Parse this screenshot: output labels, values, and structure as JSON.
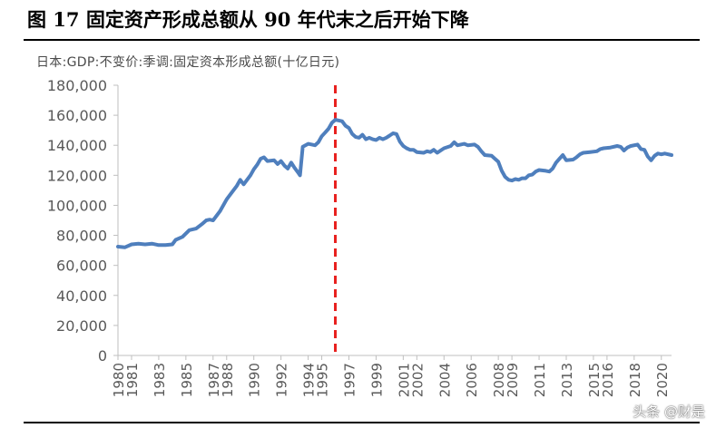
{
  "figure": {
    "title": "图 17 固定资产形成总额从 90 年代末之后开始下降",
    "subtitle": "日本:GDP:不变价:季调:固定资本形成总额(十亿日元)"
  },
  "watermark": "头条 @财是",
  "colors": {
    "series": "#4f7fbd",
    "marker": "#e8211f",
    "axis": "#bfbfbf",
    "text": "#595959"
  },
  "chart_data": {
    "type": "line",
    "title": "",
    "xlabel": "",
    "ylabel": "",
    "ylim": [
      0,
      180000
    ],
    "xlim": [
      1980.0,
      2020.75
    ],
    "grid": false,
    "legend": "none",
    "y_ticks": [
      0,
      20000,
      40000,
      60000,
      80000,
      100000,
      120000,
      140000,
      160000,
      180000
    ],
    "y_tick_labels": [
      "0",
      "20,000",
      "40,000",
      "60,000",
      "80,000",
      "100,000",
      "120,000",
      "140,000",
      "160,000",
      "180,000"
    ],
    "x_ticks": [
      1980,
      1981,
      1983,
      1985,
      1987,
      1988,
      1990,
      1992,
      1994,
      1995,
      1997,
      1999,
      2001,
      2002,
      2004,
      2006,
      2008,
      2009,
      2011,
      2013,
      2015,
      2016,
      2018,
      2020
    ],
    "x_tick_labels": [
      "1980",
      "1981",
      "1983",
      "1985",
      "1987",
      "1988",
      "1990",
      "1992",
      "1994",
      "1995",
      "1997",
      "1999",
      "2001",
      "2002",
      "2004",
      "2006",
      "2008",
      "2009",
      "2011",
      "2013",
      "2015",
      "2016",
      "2018",
      "2020"
    ],
    "reference_line": {
      "x": 1996.0,
      "style": "dashed",
      "color": "#e8211f"
    },
    "series": [
      {
        "color": "#4f7fbd",
        "points": [
          [
            1980.0,
            72500
          ],
          [
            1980.5,
            72000
          ],
          [
            1981.0,
            74000
          ],
          [
            1981.5,
            74500
          ],
          [
            1982.0,
            74000
          ],
          [
            1982.5,
            74500
          ],
          [
            1983.0,
            73500
          ],
          [
            1983.5,
            73500
          ],
          [
            1984.0,
            74000
          ],
          [
            1984.25,
            77000
          ],
          [
            1984.75,
            79000
          ],
          [
            1985.25,
            83500
          ],
          [
            1985.75,
            84500
          ],
          [
            1986.25,
            88000
          ],
          [
            1986.5,
            90000
          ],
          [
            1986.75,
            90500
          ],
          [
            1987.0,
            90000
          ],
          [
            1987.5,
            96000
          ],
          [
            1988.0,
            104000
          ],
          [
            1988.5,
            110000
          ],
          [
            1988.75,
            113000
          ],
          [
            1989.0,
            117000
          ],
          [
            1989.25,
            114000
          ],
          [
            1989.75,
            120000
          ],
          [
            1990.0,
            124000
          ],
          [
            1990.25,
            127000
          ],
          [
            1990.5,
            131000
          ],
          [
            1990.75,
            132000
          ],
          [
            1991.0,
            129500
          ],
          [
            1991.5,
            130000
          ],
          [
            1991.75,
            127500
          ],
          [
            1992.0,
            129500
          ],
          [
            1992.25,
            126500
          ],
          [
            1992.5,
            124500
          ],
          [
            1992.75,
            128500
          ],
          [
            1993.0,
            125000
          ],
          [
            1993.25,
            122000
          ],
          [
            1993.4,
            120000
          ],
          [
            1993.6,
            139000
          ],
          [
            1994.0,
            141000
          ],
          [
            1994.5,
            140000
          ],
          [
            1994.75,
            142000
          ],
          [
            1995.0,
            146000
          ],
          [
            1995.25,
            148500
          ],
          [
            1995.5,
            151000
          ],
          [
            1995.75,
            155000
          ],
          [
            1996.0,
            157000
          ],
          [
            1996.5,
            156000
          ],
          [
            1996.75,
            153000
          ],
          [
            1997.0,
            151500
          ],
          [
            1997.25,
            147500
          ],
          [
            1997.5,
            145500
          ],
          [
            1997.75,
            145000
          ],
          [
            1998.0,
            147000
          ],
          [
            1998.25,
            144000
          ],
          [
            1998.5,
            145000
          ],
          [
            1998.75,
            144000
          ],
          [
            1999.0,
            143500
          ],
          [
            1999.25,
            145000
          ],
          [
            1999.5,
            144000
          ],
          [
            1999.75,
            145000
          ],
          [
            2000.0,
            146500
          ],
          [
            2000.25,
            148000
          ],
          [
            2000.5,
            147500
          ],
          [
            2000.75,
            142500
          ],
          [
            2001.0,
            139500
          ],
          [
            2001.25,
            138000
          ],
          [
            2001.5,
            137000
          ],
          [
            2001.75,
            137000
          ],
          [
            2002.0,
            135500
          ],
          [
            2002.5,
            135000
          ],
          [
            2002.75,
            136000
          ],
          [
            2003.0,
            135500
          ],
          [
            2003.25,
            137000
          ],
          [
            2003.5,
            135000
          ],
          [
            2003.75,
            136500
          ],
          [
            2004.0,
            138000
          ],
          [
            2004.5,
            139500
          ],
          [
            2004.75,
            142000
          ],
          [
            2005.0,
            140000
          ],
          [
            2005.5,
            141000
          ],
          [
            2005.75,
            140000
          ],
          [
            2006.25,
            140500
          ],
          [
            2006.5,
            139000
          ],
          [
            2006.75,
            136000
          ],
          [
            2007.0,
            133500
          ],
          [
            2007.5,
            133000
          ],
          [
            2007.75,
            131000
          ],
          [
            2008.0,
            129000
          ],
          [
            2008.25,
            123000
          ],
          [
            2008.5,
            119000
          ],
          [
            2008.75,
            117000
          ],
          [
            2009.0,
            116500
          ],
          [
            2009.25,
            117500
          ],
          [
            2009.5,
            117000
          ],
          [
            2009.75,
            118000
          ],
          [
            2010.0,
            118000
          ],
          [
            2010.25,
            120000
          ],
          [
            2010.5,
            120500
          ],
          [
            2010.75,
            122500
          ],
          [
            2011.0,
            123500
          ],
          [
            2011.5,
            123000
          ],
          [
            2011.75,
            122500
          ],
          [
            2012.0,
            124500
          ],
          [
            2012.25,
            128500
          ],
          [
            2012.5,
            131000
          ],
          [
            2012.75,
            133500
          ],
          [
            2013.0,
            130000
          ],
          [
            2013.5,
            130500
          ],
          [
            2013.75,
            132000
          ],
          [
            2014.0,
            134000
          ],
          [
            2014.25,
            135000
          ],
          [
            2014.75,
            135500
          ],
          [
            2015.25,
            136000
          ],
          [
            2015.5,
            137500
          ],
          [
            2015.75,
            138000
          ],
          [
            2016.25,
            138500
          ],
          [
            2016.75,
            139500
          ],
          [
            2017.0,
            139000
          ],
          [
            2017.25,
            136500
          ],
          [
            2017.5,
            138500
          ],
          [
            2017.75,
            139500
          ],
          [
            2018.25,
            140500
          ],
          [
            2018.5,
            137500
          ],
          [
            2018.75,
            137000
          ],
          [
            2019.0,
            132500
          ],
          [
            2019.25,
            130000
          ],
          [
            2019.5,
            133000
          ],
          [
            2019.75,
            134500
          ],
          [
            2020.0,
            134000
          ],
          [
            2020.25,
            134500
          ],
          [
            2020.75,
            133500
          ]
        ]
      }
    ]
  }
}
